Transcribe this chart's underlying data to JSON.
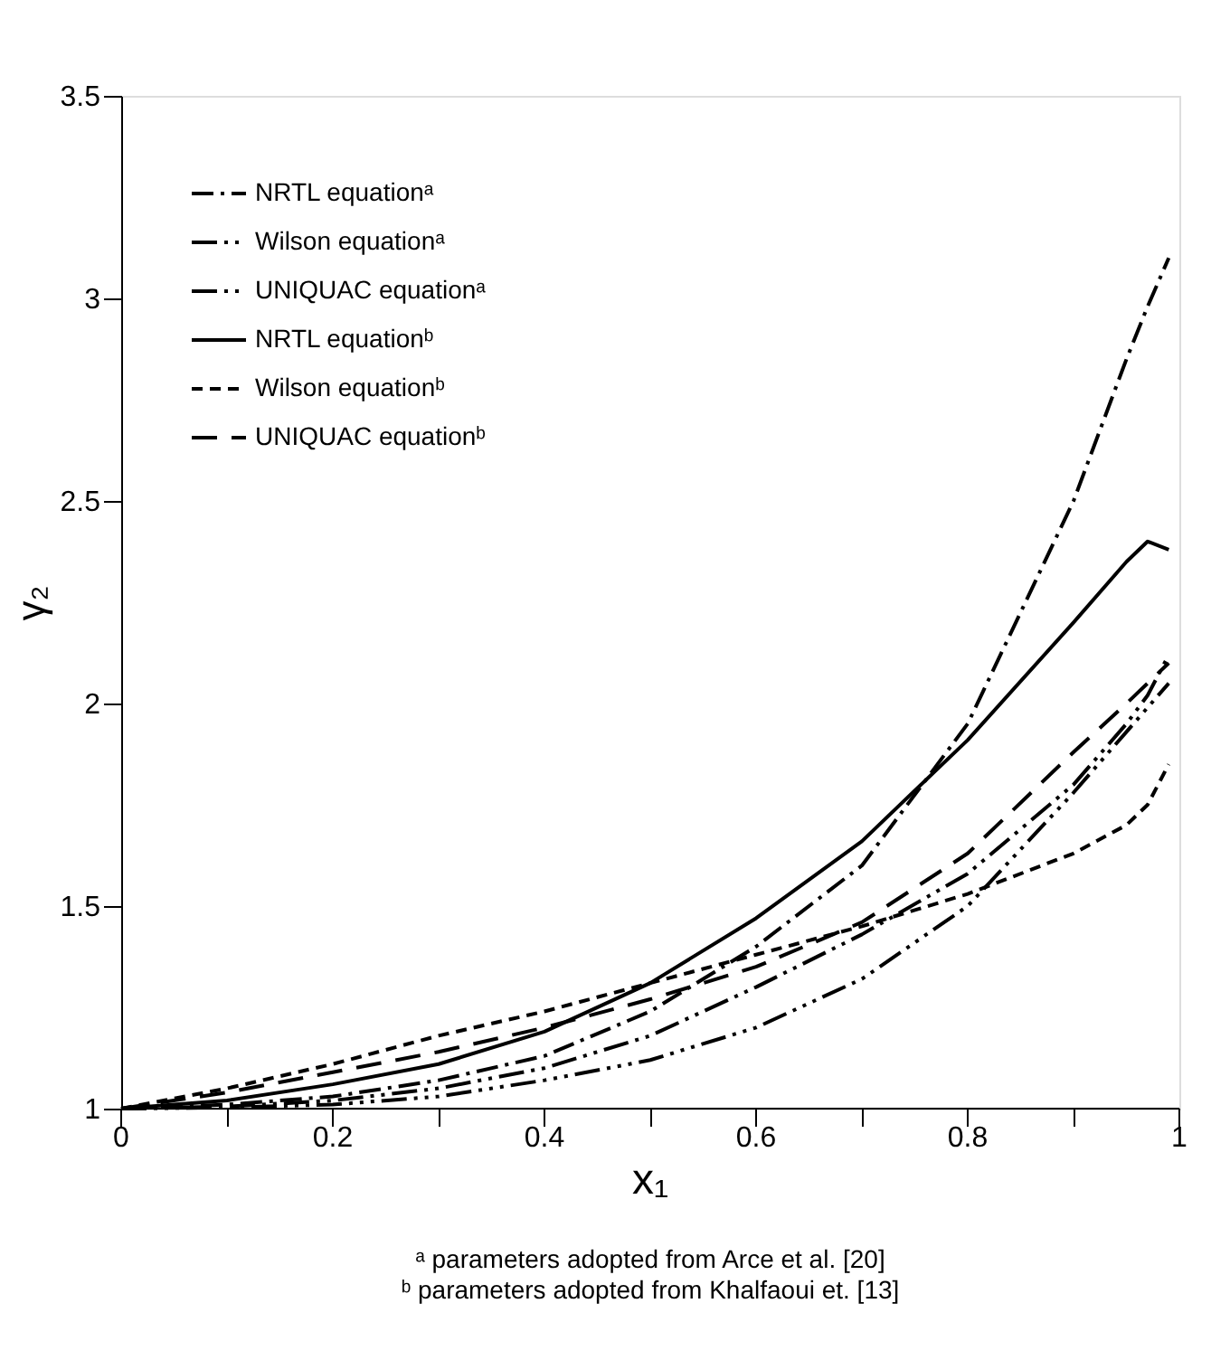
{
  "chart_data": {
    "type": "line",
    "xlabel": "x₁",
    "ylabel": "γ₂",
    "xlim": [
      0,
      1
    ],
    "ylim": [
      1,
      3.5
    ],
    "xticks": [
      0,
      {
        "value": 0.1,
        "label": null
      },
      0.2,
      {
        "value": 0.3,
        "label": null
      },
      0.4,
      {
        "value": 0.5,
        "label": null
      },
      0.6,
      {
        "value": 0.7,
        "label": null
      },
      0.8,
      {
        "value": 0.9,
        "label": null
      },
      1
    ],
    "yticks": [
      1,
      1.5,
      2,
      2.5,
      3,
      3.5
    ],
    "grid": false,
    "legend": "top left",
    "marker": "none",
    "x": [
      0,
      0.1,
      0.2,
      0.3,
      0.4,
      0.5,
      0.6,
      0.7,
      0.8,
      0.9,
      0.95,
      0.97,
      0.99
    ],
    "series": [
      {
        "name": "NRTL equationᵃ",
        "color": "#000000",
        "line_style": "dashed",
        "values": [
          1,
          1.01,
          1.03,
          1.07,
          1.13,
          1.24,
          1.4,
          1.6,
          1.95,
          2.5,
          2.85,
          2.98,
          3.1
        ]
      },
      {
        "name": "Wilson equationᵃ",
        "color": "#000000",
        "line_style": "dashed",
        "values": [
          1,
          1.005,
          1.02,
          1.05,
          1.1,
          1.18,
          1.3,
          1.43,
          1.58,
          1.8,
          1.95,
          2.02,
          2.12
        ]
      },
      {
        "name": "UNIQUAC equationᵃ",
        "color": "#000000",
        "line_style": "dashed",
        "values": [
          1,
          1.003,
          1.01,
          1.03,
          1.07,
          1.12,
          1.2,
          1.32,
          1.5,
          1.78,
          1.93,
          1.99,
          2.05
        ]
      },
      {
        "name": "NRTL equationᵇ",
        "color": "#000000",
        "line_style": "solid",
        "values": [
          1,
          1.02,
          1.06,
          1.11,
          1.19,
          1.31,
          1.47,
          1.66,
          1.91,
          2.2,
          2.35,
          2.4,
          2.38
        ]
      },
      {
        "name": "Wilson equationᵇ",
        "color": "#000000",
        "line_style": "dashed",
        "values": [
          1,
          1.05,
          1.11,
          1.18,
          1.24,
          1.31,
          1.38,
          1.45,
          1.53,
          1.63,
          1.7,
          1.75,
          1.85
        ]
      },
      {
        "name": "UNIQUAC equationᵇ",
        "color": "#000000",
        "line_style": "dashed",
        "values": [
          1,
          1.04,
          1.09,
          1.14,
          1.2,
          1.27,
          1.35,
          1.46,
          1.63,
          1.88,
          2.0,
          2.05,
          2.1
        ]
      }
    ],
    "annotations": [
      "ᵃ parameters adopted from Arce et al. [20]",
      "ᵇ parameters adopted from Khalfaoui et. [13]"
    ]
  }
}
